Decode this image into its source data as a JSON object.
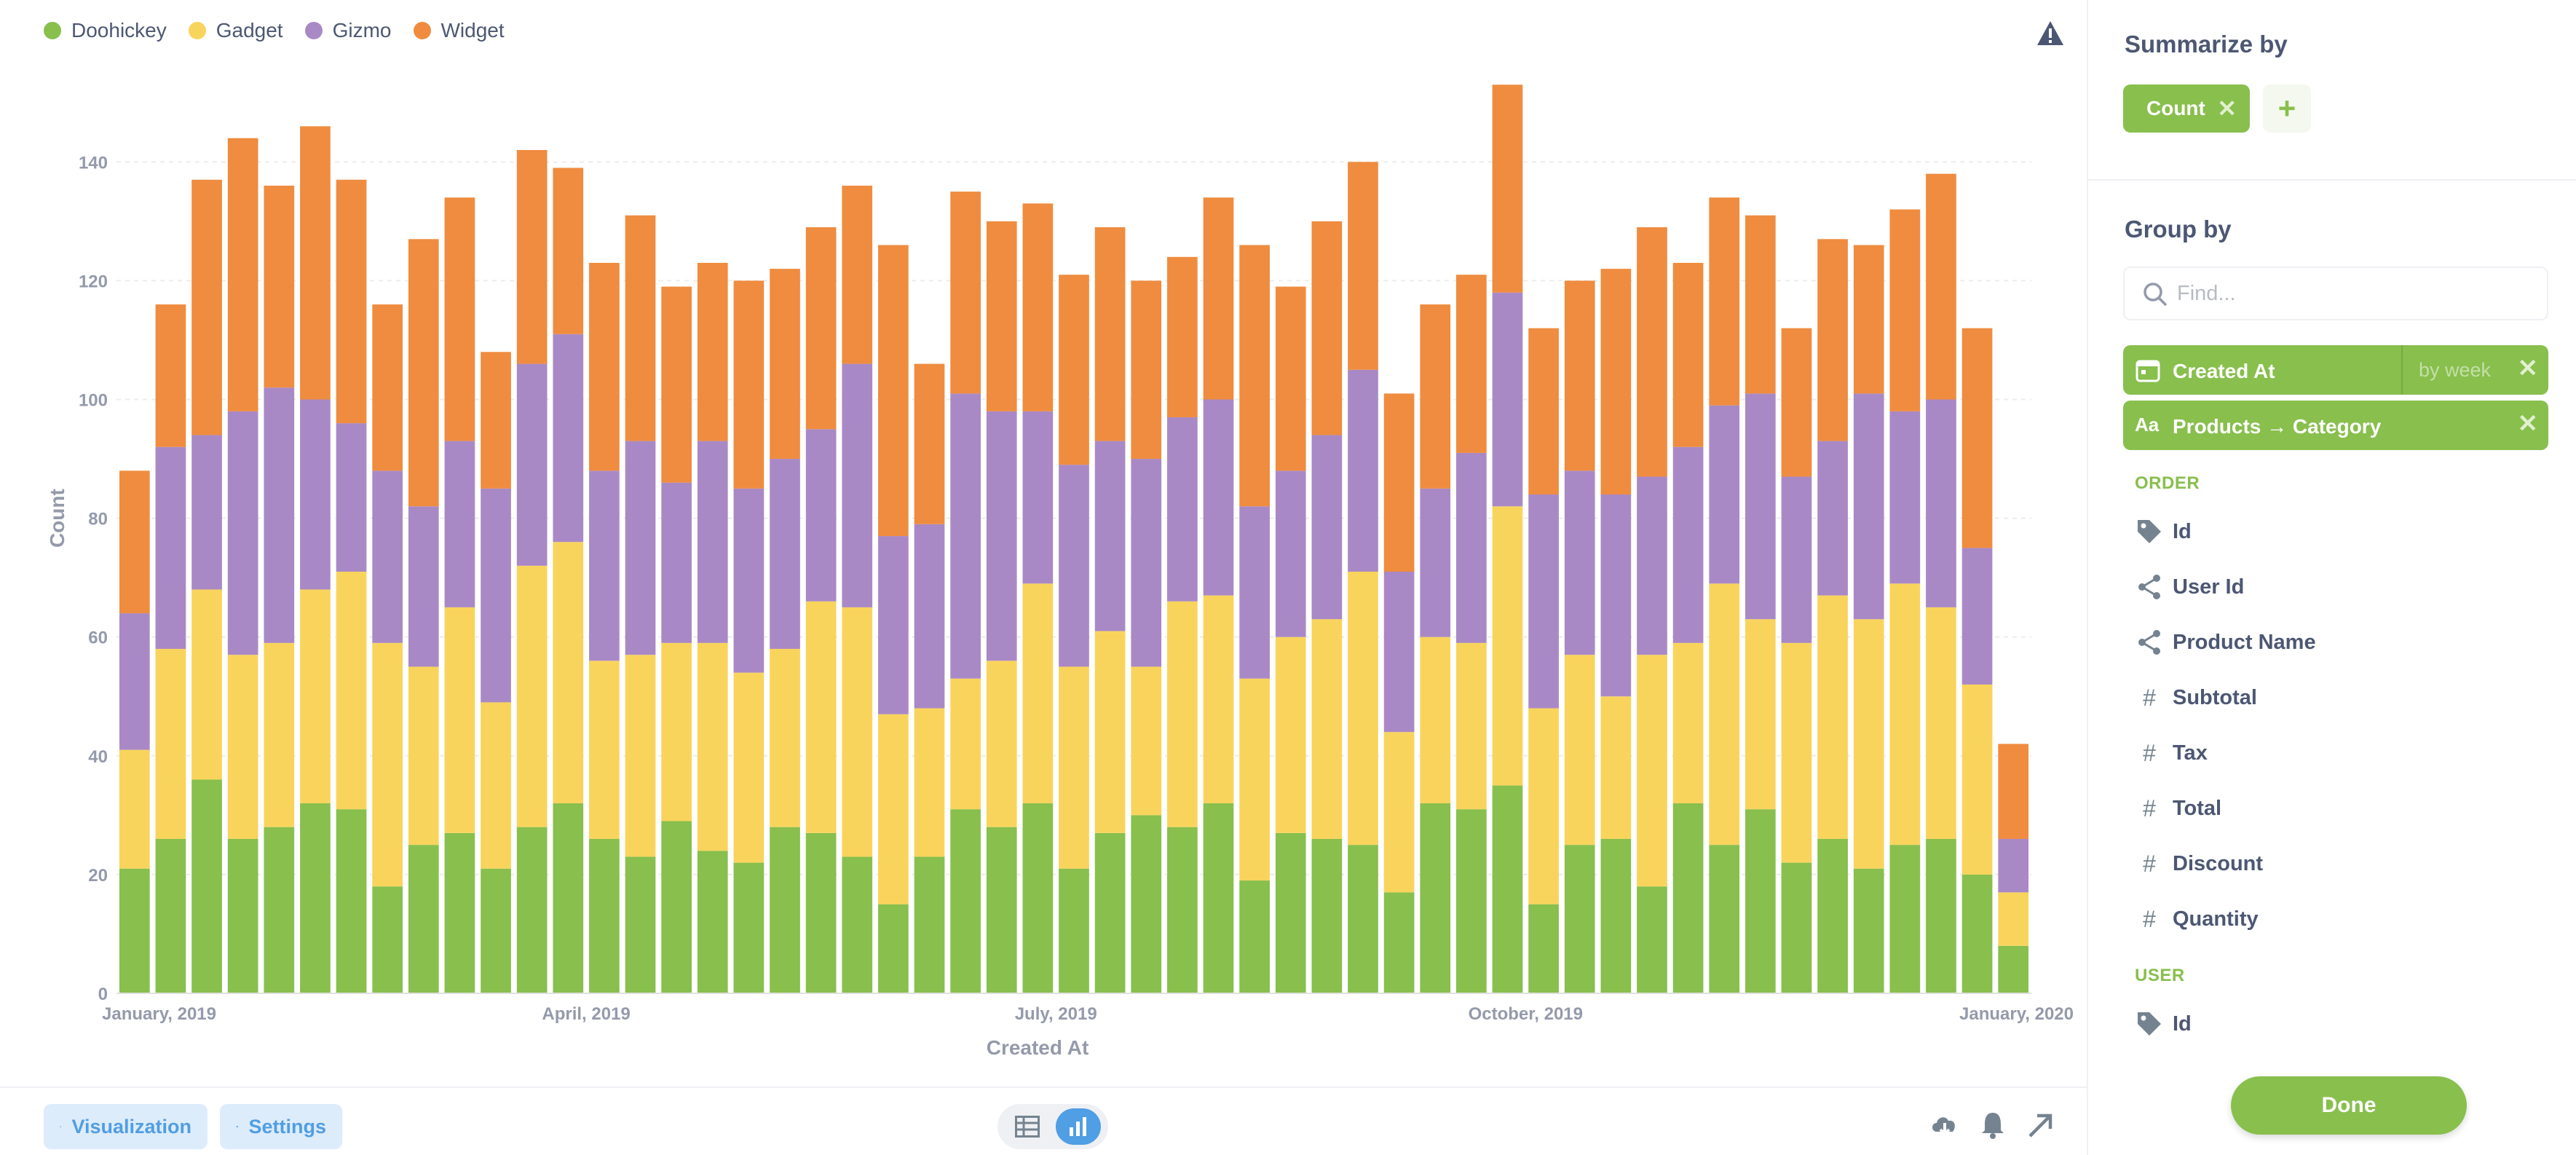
{
  "colors": {
    "doohickey": "#88bf4d",
    "gadget": "#f9d45c",
    "gizmo": "#a989c5",
    "widget": "#ef8c3f",
    "accent": "#509ee3",
    "done": "#88bf4d"
  },
  "warning_icon": "warning-icon",
  "chart_data": {
    "type": "bar",
    "stacked": true,
    "xlabel": "Created At",
    "ylabel": "Count",
    "ylim": [
      0,
      155
    ],
    "yticks": [
      0,
      20,
      40,
      60,
      80,
      100,
      120,
      140
    ],
    "xtick_labels": [
      {
        "label": "January, 2019",
        "index": 0
      },
      {
        "label": "April, 2019",
        "index": 13
      },
      {
        "label": "July, 2019",
        "index": 26
      },
      {
        "label": "October, 2019",
        "index": 39
      },
      {
        "label": "January, 2020",
        "index": 52
      }
    ],
    "legend": [
      "Doohickey",
      "Gadget",
      "Gizmo",
      "Widget"
    ],
    "series": [
      {
        "name": "Doohickey",
        "color": "#88bf4d",
        "values": [
          21,
          26,
          36,
          26,
          28,
          32,
          31,
          18,
          25,
          27,
          21,
          28,
          32,
          26,
          23,
          29,
          24,
          22,
          28,
          27,
          23,
          15,
          23,
          31,
          28,
          32,
          21,
          27,
          30,
          28,
          32,
          19,
          27,
          26,
          25,
          17,
          32,
          31,
          35,
          15,
          25,
          26,
          18,
          32,
          25,
          31,
          22,
          26,
          21,
          25,
          26,
          20,
          8
        ]
      },
      {
        "name": "Gadget",
        "color": "#f9d45c",
        "values": [
          20,
          32,
          32,
          31,
          31,
          36,
          40,
          41,
          30,
          38,
          28,
          44,
          44,
          30,
          34,
          30,
          35,
          32,
          30,
          39,
          42,
          32,
          25,
          22,
          28,
          37,
          34,
          34,
          25,
          38,
          35,
          34,
          33,
          37,
          46,
          27,
          28,
          28,
          47,
          33,
          32,
          24,
          39,
          27,
          44,
          32,
          37,
          41,
          42,
          44,
          39,
          32,
          9
        ]
      },
      {
        "name": "Gizmo",
        "color": "#a989c5",
        "values": [
          23,
          34,
          26,
          41,
          43,
          32,
          25,
          29,
          27,
          28,
          36,
          34,
          35,
          32,
          36,
          27,
          34,
          31,
          32,
          29,
          41,
          30,
          31,
          48,
          42,
          29,
          34,
          32,
          35,
          31,
          33,
          29,
          28,
          31,
          34,
          27,
          25,
          32,
          36,
          36,
          31,
          34,
          30,
          33,
          30,
          38,
          28,
          26,
          38,
          29,
          35,
          23,
          9
        ]
      },
      {
        "name": "Widget",
        "color": "#ef8c3f",
        "values": [
          24,
          24,
          43,
          46,
          34,
          46,
          41,
          28,
          45,
          41,
          23,
          36,
          28,
          35,
          38,
          33,
          30,
          35,
          32,
          34,
          30,
          49,
          27,
          34,
          32,
          35,
          32,
          36,
          30,
          27,
          34,
          44,
          31,
          36,
          35,
          30,
          31,
          30,
          35,
          28,
          32,
          38,
          42,
          31,
          35,
          30,
          25,
          34,
          25,
          34,
          38,
          37,
          16
        ]
      }
    ]
  },
  "bottom_bar": {
    "visualization_label": "Visualization",
    "settings_label": "Settings"
  },
  "sidebar": {
    "summarize_title": "Summarize by",
    "metric_chip": "Count",
    "add_label": "+",
    "group_title": "Group by",
    "find_placeholder": "Find...",
    "group_chips": [
      {
        "label": "Created At",
        "bin": "by week"
      },
      {
        "label": "Products → Category"
      }
    ],
    "order_head": "ORDER",
    "order_fields": [
      "Id",
      "User Id",
      "Product Name",
      "Subtotal",
      "Tax",
      "Total",
      "Discount",
      "Quantity"
    ],
    "user_head": "USER",
    "user_fields": [
      "Id"
    ],
    "done_label": "Done"
  }
}
